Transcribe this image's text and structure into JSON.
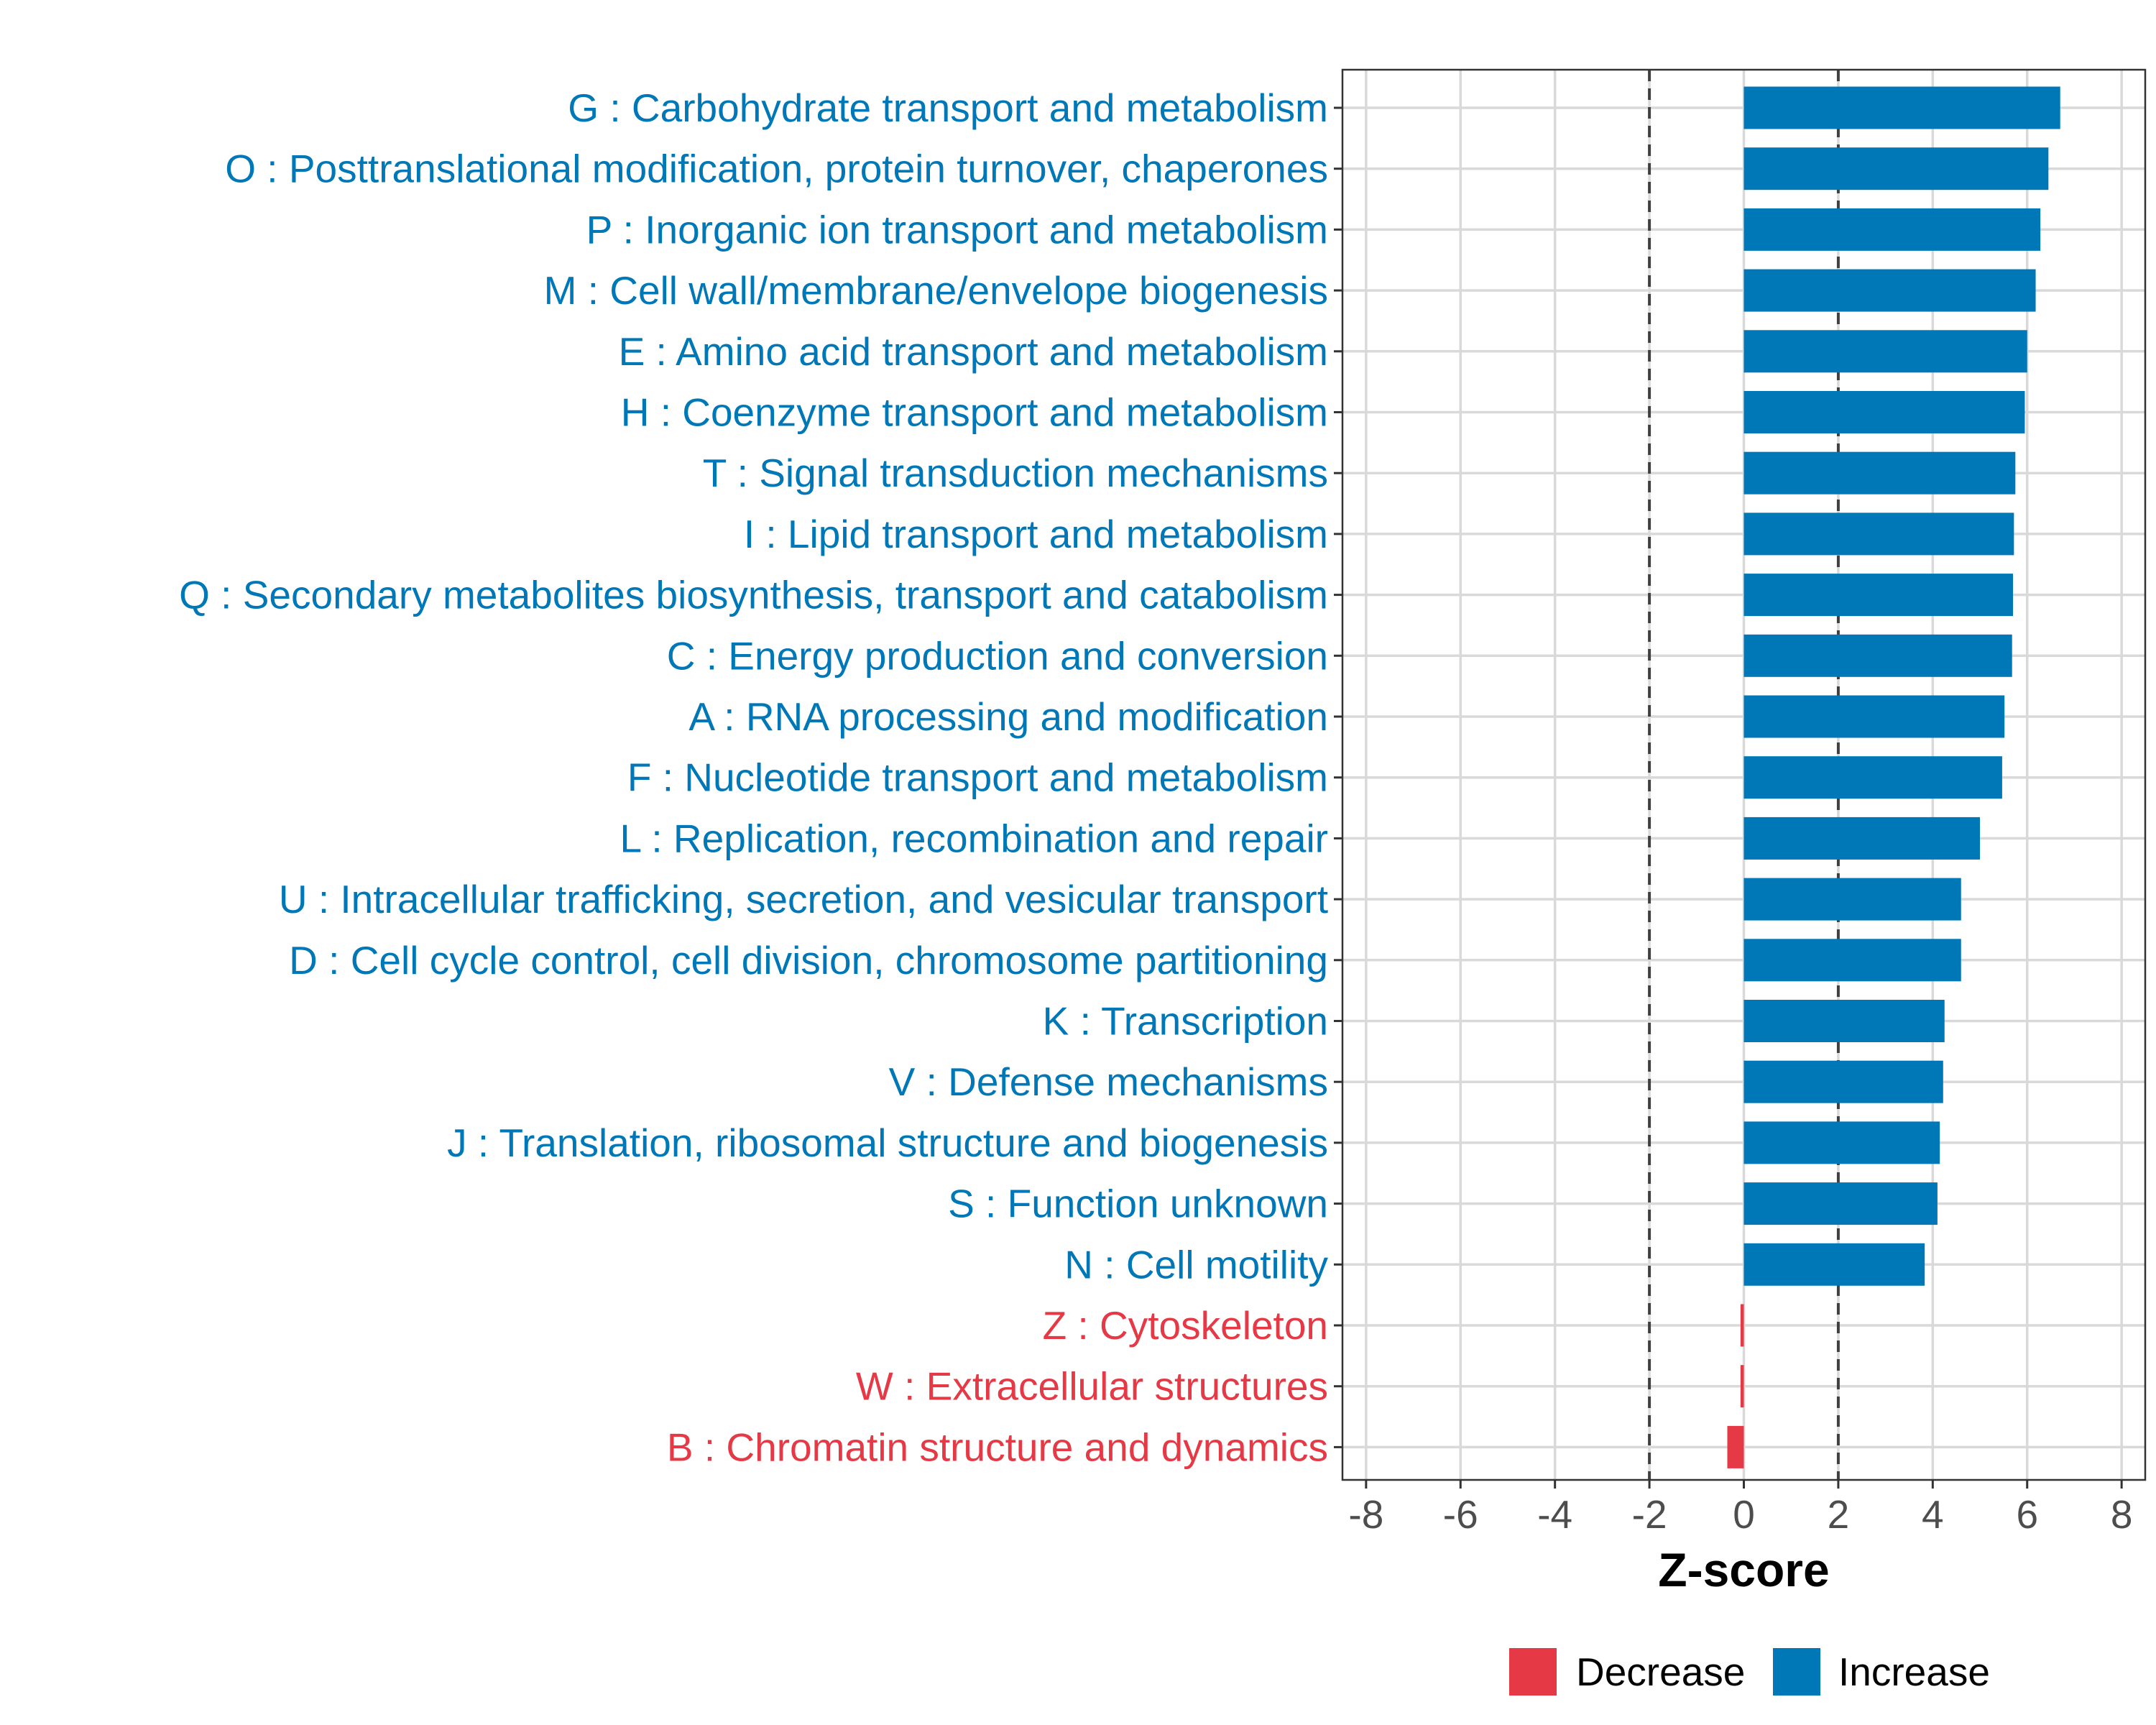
{
  "chart_data": {
    "type": "bar",
    "orientation": "horizontal",
    "xlabel": "Z-score",
    "ylabel": "",
    "xlim": [
      -8.5,
      8.5
    ],
    "xticks": [
      -8,
      -6,
      -4,
      -2,
      0,
      2,
      4,
      6,
      8
    ],
    "xtick_labels": [
      "-8",
      "-6",
      "-4",
      "-2",
      "0",
      "2",
      "4",
      "6",
      "8"
    ],
    "reference_lines": [
      -2,
      2
    ],
    "grid": true,
    "colors": {
      "Increase": "#0077b6",
      "Decrease": "#e63946"
    },
    "legend": {
      "placement": "bottom",
      "items": [
        {
          "label": "Decrease",
          "color": "#e63946"
        },
        {
          "label": "Increase",
          "color": "#0077b6"
        }
      ]
    },
    "categories": [
      "G : Carbohydrate transport and metabolism",
      "O : Posttranslational modification, protein turnover, chaperones",
      "P : Inorganic ion transport and metabolism",
      "M : Cell wall/membrane/envelope biogenesis",
      "E : Amino acid transport and metabolism",
      "H : Coenzyme transport and metabolism",
      "T : Signal transduction mechanisms",
      "I : Lipid transport and metabolism",
      "Q : Secondary metabolites biosynthesis, transport and catabolism",
      "C : Energy production and conversion",
      "A : RNA processing and modification",
      "F : Nucleotide transport and metabolism",
      "L : Replication, recombination and repair",
      "U : Intracellular trafficking, secretion, and vesicular transport",
      "D : Cell cycle control, cell division, chromosome partitioning",
      "K : Transcription",
      "V : Defense mechanisms",
      "J : Translation, ribosomal structure and biogenesis",
      "S : Function unknown",
      "N : Cell motility",
      "Z : Cytoskeleton",
      "W : Extracellular structures",
      "B : Chromatin structure and dynamics"
    ],
    "values": [
      6.7,
      6.45,
      6.28,
      6.18,
      6.0,
      5.95,
      5.75,
      5.72,
      5.7,
      5.68,
      5.52,
      5.47,
      5.0,
      4.6,
      4.6,
      4.25,
      4.22,
      4.15,
      4.1,
      3.83,
      -0.07,
      -0.07,
      -0.35
    ],
    "direction": [
      "Increase",
      "Increase",
      "Increase",
      "Increase",
      "Increase",
      "Increase",
      "Increase",
      "Increase",
      "Increase",
      "Increase",
      "Increase",
      "Increase",
      "Increase",
      "Increase",
      "Increase",
      "Increase",
      "Increase",
      "Increase",
      "Increase",
      "Increase",
      "Decrease",
      "Decrease",
      "Decrease"
    ]
  }
}
